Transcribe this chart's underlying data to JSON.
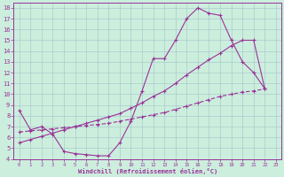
{
  "xlabel": "Windchill (Refroidissement éolien,°C)",
  "background_color": "#cceedd",
  "grid_color": "#aacccc",
  "line_color": "#993399",
  "xlim": [
    -0.5,
    23.5
  ],
  "ylim": [
    4,
    18.5
  ],
  "xticks": [
    0,
    1,
    2,
    3,
    4,
    5,
    6,
    7,
    8,
    9,
    10,
    11,
    12,
    13,
    14,
    15,
    16,
    17,
    18,
    19,
    20,
    21,
    22,
    23
  ],
  "yticks": [
    4,
    5,
    6,
    7,
    8,
    9,
    10,
    11,
    12,
    13,
    14,
    15,
    16,
    17,
    18
  ],
  "line1_x": [
    0,
    1,
    2,
    3,
    4,
    5,
    6,
    7,
    8,
    9,
    10,
    11,
    12,
    13,
    14,
    15,
    16,
    17,
    18,
    19,
    20,
    21,
    22
  ],
  "line1_y": [
    8.5,
    6.7,
    7.0,
    6.3,
    4.7,
    4.5,
    4.4,
    4.3,
    4.3,
    5.5,
    7.5,
    10.3,
    13.3,
    13.3,
    15.0,
    17.0,
    18.0,
    17.5,
    17.3,
    15.0,
    13.0,
    12.0,
    10.5
  ],
  "line2_x": [
    0,
    1,
    2,
    3,
    4,
    5,
    6,
    7,
    8,
    9,
    10,
    11,
    12,
    13,
    14,
    15,
    16,
    17,
    18,
    19,
    20,
    21,
    22
  ],
  "line2_y": [
    5.5,
    5.8,
    6.1,
    6.4,
    6.7,
    7.0,
    7.3,
    7.6,
    7.9,
    8.2,
    8.7,
    9.2,
    9.8,
    10.3,
    11.0,
    11.8,
    12.5,
    13.2,
    13.8,
    14.5,
    15.0,
    15.0,
    10.5
  ],
  "line3_x": [
    0,
    1,
    2,
    3,
    4,
    5,
    6,
    7,
    8,
    9,
    10,
    11,
    12,
    13,
    14,
    15,
    16,
    17,
    18,
    19,
    20,
    21,
    22
  ],
  "line3_y": [
    6.5,
    6.6,
    6.7,
    6.8,
    6.9,
    7.0,
    7.1,
    7.2,
    7.3,
    7.5,
    7.7,
    7.9,
    8.1,
    8.3,
    8.6,
    8.9,
    9.2,
    9.5,
    9.8,
    10.0,
    10.2,
    10.3,
    10.5
  ]
}
